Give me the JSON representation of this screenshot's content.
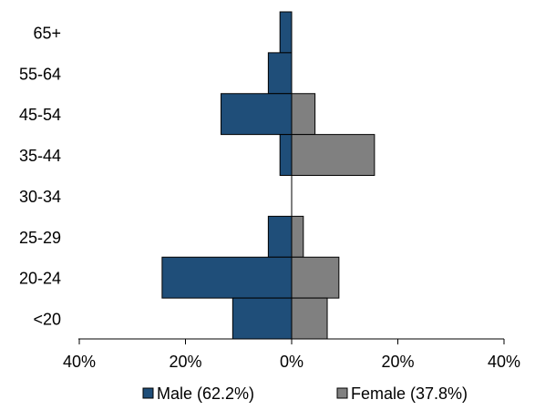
{
  "chart_data": {
    "type": "bar",
    "orientation": "horizontal",
    "subtype": "population-pyramid",
    "categories": [
      "65+",
      "55-64",
      "45-54",
      "35-44",
      "30-34",
      "25-29",
      "20-24",
      "<20"
    ],
    "series": [
      {
        "name": "Male (62.2%)",
        "color": "#1f4e79",
        "side": "left",
        "values": [
          2.2,
          4.4,
          13.3,
          2.2,
          0.0,
          4.4,
          24.4,
          11.1
        ]
      },
      {
        "name": "Female (37.8%)",
        "color": "#808080",
        "side": "right",
        "values": [
          0.0,
          0.0,
          4.4,
          15.6,
          0.0,
          2.2,
          8.9,
          6.7
        ]
      }
    ],
    "xlim": [
      -40,
      40
    ],
    "x_ticks": [
      -40,
      -20,
      0,
      20,
      40
    ],
    "x_tick_labels": [
      "40%",
      "20%",
      "0%",
      "20%",
      "40%"
    ],
    "legend_position": "bottom",
    "grid": false
  }
}
